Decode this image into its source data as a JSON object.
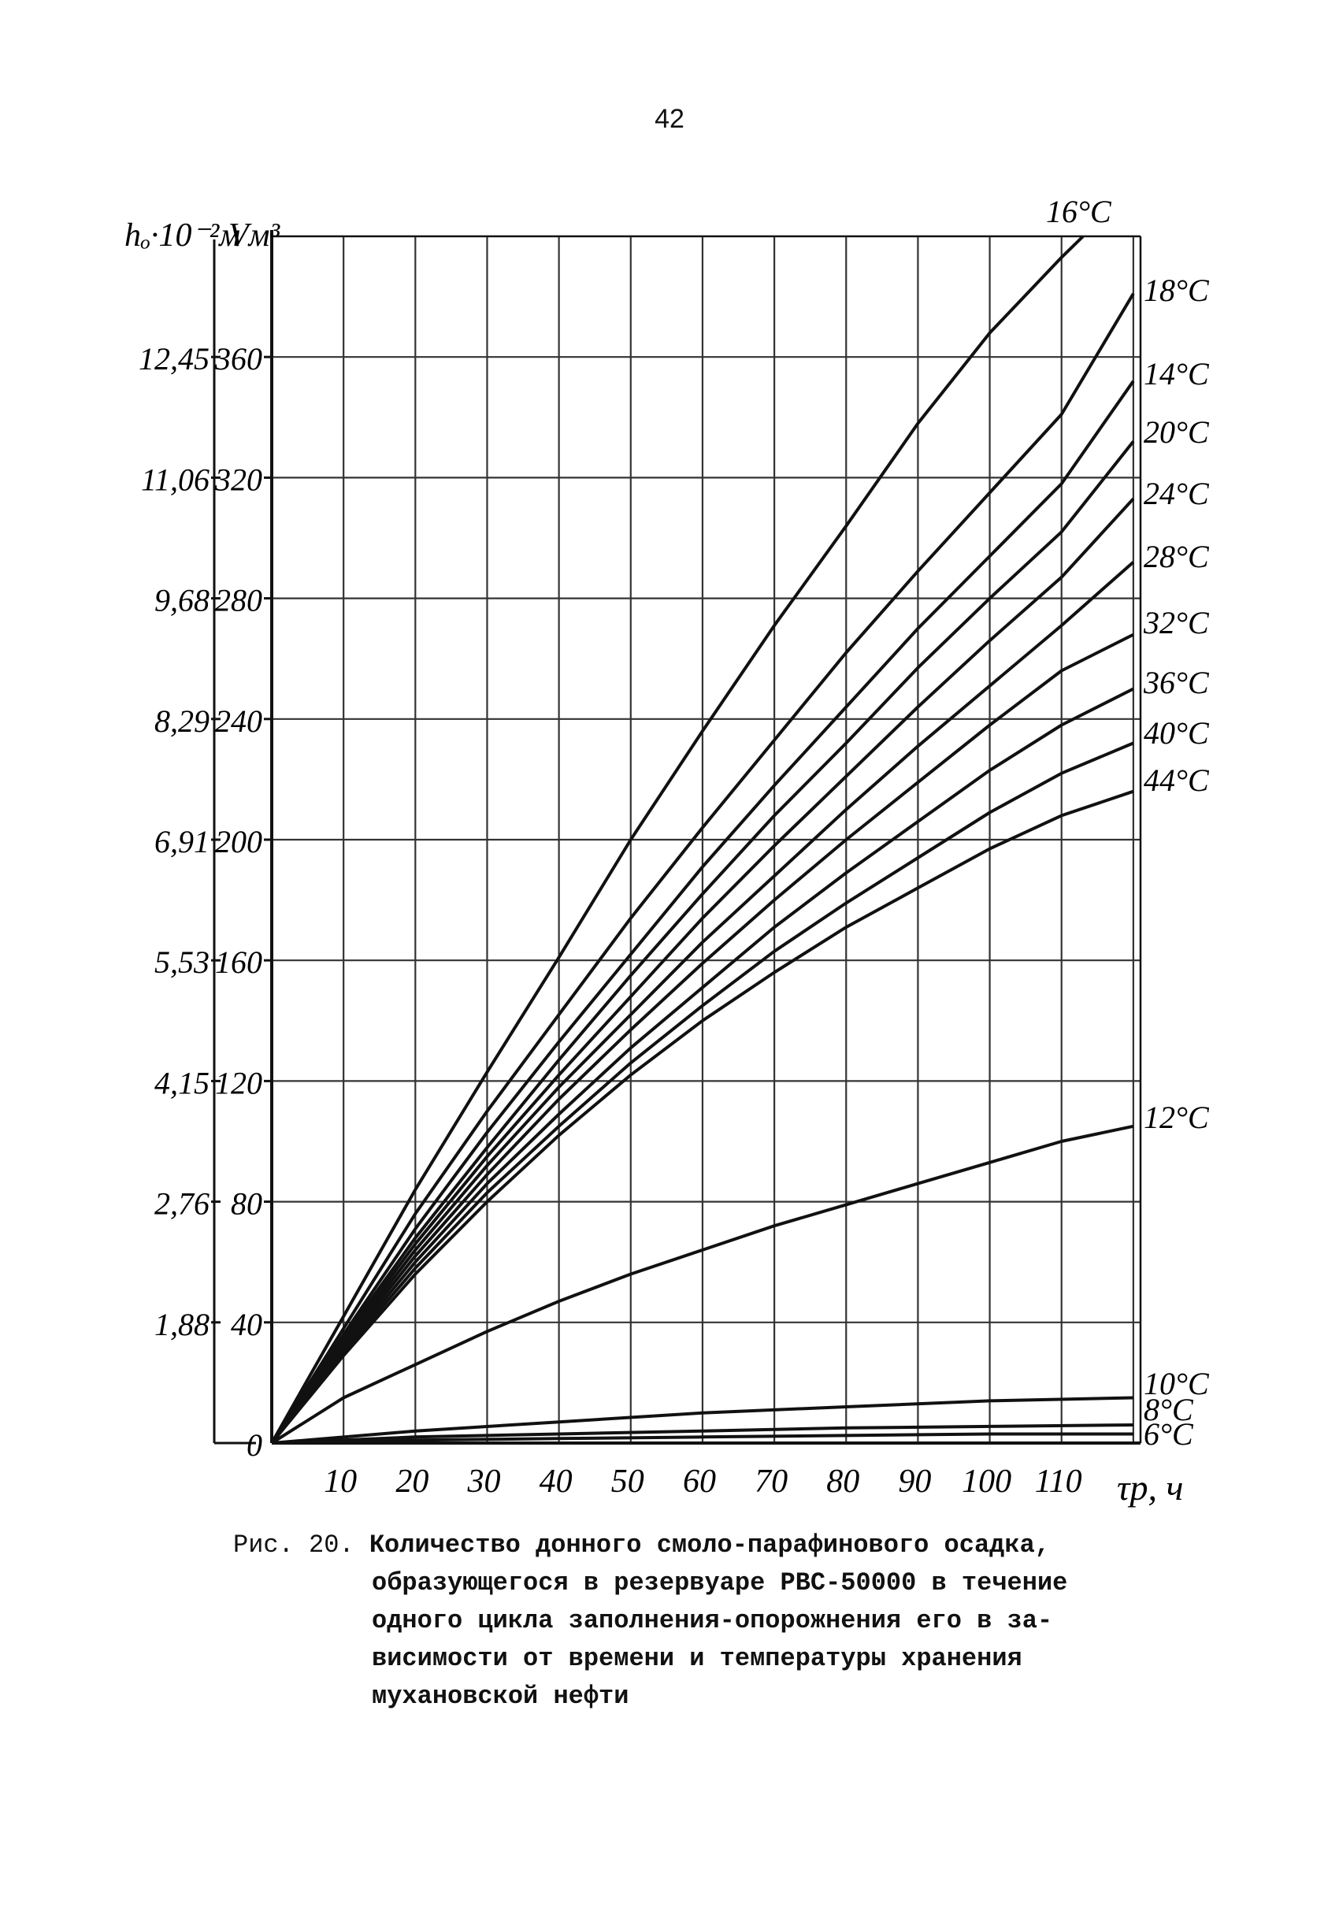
{
  "page_number": "42",
  "caption": {
    "label": "Рис. 20.",
    "lines": [
      "Количество донного смоло-парафинового осадка,",
      "образующегося в резервуаре РВС-50000 в течение",
      "одного цикла заполнения-опорожнения его в за-",
      "висимости от времени и температуры хранения",
      "мухановской нефти"
    ]
  },
  "chart_data": {
    "type": "line",
    "ylabel_outer": "hₒ·10⁻²м",
    "ylabel_inner": "Vм³",
    "xlabel": "τp, ч",
    "x_ticks": [
      "10",
      "20",
      "30",
      "40",
      "50",
      "60",
      "70",
      "80",
      "90",
      "100",
      "110"
    ],
    "y_ticks": [
      "0",
      "40",
      "80",
      "120",
      "160",
      "200",
      "240",
      "280",
      "320",
      "360"
    ],
    "y_ticks_outer": [
      "",
      "1,88",
      "2,76",
      "4,15",
      "5,53",
      "6,91",
      "8,29",
      "9,68",
      "11,06",
      "12,45"
    ],
    "xlim": [
      0,
      121
    ],
    "ylim": [
      0,
      400
    ],
    "grid": true,
    "series": [
      {
        "name": "16°C",
        "label_pos": "top",
        "x": [
          0,
          10,
          20,
          30,
          40,
          50,
          60,
          70,
          80,
          90,
          100,
          110,
          113
        ],
        "y": [
          0,
          42,
          84,
          123,
          161,
          200,
          236,
          271,
          304,
          338,
          368,
          393,
          400
        ]
      },
      {
        "name": "18°C",
        "x": [
          0,
          10,
          20,
          30,
          40,
          50,
          60,
          70,
          80,
          90,
          100,
          110,
          120
        ],
        "y": [
          0,
          38,
          76,
          110,
          142,
          174,
          204,
          233,
          262,
          289,
          315,
          341,
          381
        ]
      },
      {
        "name": "14°C",
        "x": [
          0,
          10,
          20,
          30,
          40,
          50,
          60,
          70,
          80,
          90,
          100,
          110,
          120
        ],
        "y": [
          0,
          36,
          71,
          103,
          133,
          162,
          191,
          218,
          244,
          270,
          294,
          318,
          352
        ]
      },
      {
        "name": "20°C",
        "x": [
          0,
          10,
          20,
          30,
          40,
          50,
          60,
          70,
          80,
          90,
          100,
          110,
          120
        ],
        "y": [
          0,
          35,
          68,
          98,
          127,
          155,
          182,
          208,
          232,
          257,
          280,
          302,
          332
        ]
      },
      {
        "name": "24°C",
        "x": [
          0,
          10,
          20,
          30,
          40,
          50,
          60,
          70,
          80,
          90,
          100,
          110,
          120
        ],
        "y": [
          0,
          34,
          66,
          95,
          122,
          148,
          174,
          198,
          221,
          244,
          266,
          287,
          313
        ]
      },
      {
        "name": "28°C",
        "x": [
          0,
          10,
          20,
          30,
          40,
          50,
          60,
          70,
          80,
          90,
          100,
          110,
          120
        ],
        "y": [
          0,
          33,
          64,
          92,
          118,
          142,
          166,
          188,
          210,
          231,
          251,
          271,
          292
        ]
      },
      {
        "name": "32°C",
        "x": [
          0,
          10,
          20,
          30,
          40,
          50,
          60,
          70,
          80,
          90,
          100,
          110,
          120
        ],
        "y": [
          0,
          32,
          62,
          89,
          114,
          137,
          159,
          180,
          200,
          219,
          238,
          256,
          268
        ]
      },
      {
        "name": "36°C",
        "x": [
          0,
          10,
          20,
          30,
          40,
          50,
          60,
          70,
          80,
          90,
          100,
          110,
          120
        ],
        "y": [
          0,
          31,
          60,
          86,
          109,
          131,
          151,
          171,
          189,
          206,
          223,
          238,
          250
        ]
      },
      {
        "name": "40°C",
        "x": [
          0,
          10,
          20,
          30,
          40,
          50,
          60,
          70,
          80,
          90,
          100,
          110,
          120
        ],
        "y": [
          0,
          30,
          58,
          83,
          105,
          126,
          145,
          163,
          179,
          194,
          209,
          222,
          232
        ]
      },
      {
        "name": "44°C",
        "x": [
          0,
          10,
          20,
          30,
          40,
          50,
          60,
          70,
          80,
          90,
          100,
          110,
          120
        ],
        "y": [
          0,
          29,
          56,
          80,
          102,
          122,
          140,
          156,
          171,
          184,
          197,
          208,
          216
        ]
      },
      {
        "name": "12°C",
        "x": [
          0,
          10,
          20,
          30,
          40,
          50,
          60,
          70,
          80,
          90,
          100,
          110,
          120
        ],
        "y": [
          0,
          15,
          26,
          37,
          47,
          56,
          64,
          72,
          79,
          86,
          93,
          100,
          105
        ]
      },
      {
        "name": "10°C",
        "x": [
          0,
          20,
          40,
          60,
          80,
          100,
          120
        ],
        "y": [
          0,
          4,
          7,
          10,
          12,
          14,
          15
        ]
      },
      {
        "name": "8°C",
        "x": [
          0,
          20,
          40,
          60,
          80,
          100,
          120
        ],
        "y": [
          0,
          2,
          3,
          4,
          5,
          5.5,
          6
        ]
      },
      {
        "name": "6°C",
        "x": [
          0,
          20,
          40,
          60,
          80,
          100,
          120
        ],
        "y": [
          0,
          1,
          1.5,
          2,
          2.5,
          3,
          3
        ]
      }
    ]
  }
}
